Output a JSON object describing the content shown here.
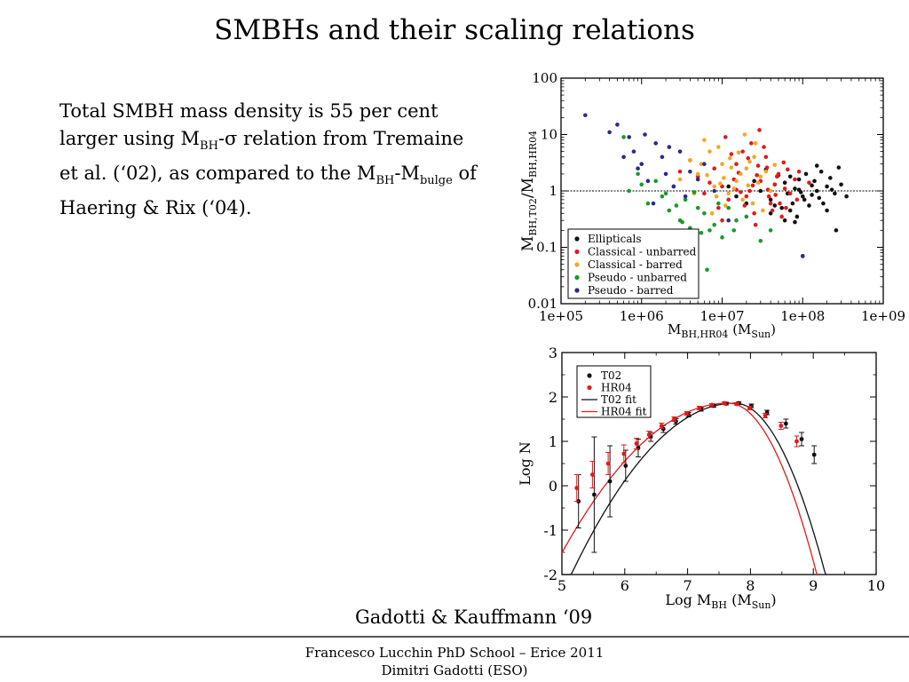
{
  "slide": {
    "title": "SMBHs and their scaling relations",
    "bullet": {
      "p1": "Total SMBH mass density is 55 per cent larger using M",
      "sub1": "BH",
      "p2": "-σ relation from Tremaine et al. (‘02), as compared to the M",
      "sub2": "BH",
      "p3": "-M",
      "sub3": "bulge",
      "p4": " of Haering & Rix (‘04)."
    },
    "credit": "Gadotti & Kauffmann ‘09",
    "footer_line1": "Francesco Lucchin PhD School – Erice 2011",
    "footer_line2": "Dimitri Gadotti (ESO)"
  },
  "colors": {
    "Ellipticals": "#111111",
    "Classical - unbarred": "#e01b1b",
    "Classical - barred": "#f5a623",
    "Pseudo - unbarred": "#1a9a2a",
    "Pseudo - barred": "#2b2a8c",
    "T02": "#111111",
    "HR04": "#e01b1b"
  },
  "chart_data": [
    {
      "type": "scatter",
      "xscale": "log",
      "yscale": "log",
      "xlim": [
        100000,
        1000000000
      ],
      "ylim": [
        0.01,
        100
      ],
      "xticks": [
        "1e+05",
        "1e+06",
        "1e+07",
        "1e+08",
        "1e+09"
      ],
      "yticks": [
        "0.01",
        "0.1",
        "1",
        "10",
        "100"
      ],
      "xlabel": {
        "main": "M",
        "sub": "BH,HR04",
        "rest": " (M",
        "unit": "Sun",
        "end": ")"
      },
      "ylabel": {
        "main1": "M",
        "sub1": "BH,T02",
        "slash": "/M",
        "sub2": "BH,HR04"
      },
      "reference_line_y": 1,
      "legend_position": "bottom-left",
      "series": [
        {
          "name": "Ellipticals",
          "points": [
            [
              80000000,
              1.1
            ],
            [
              100000000,
              0.8
            ],
            [
              60000000,
              1.4
            ],
            [
              150000000,
              1.0
            ],
            [
              40000000,
              0.7
            ],
            [
              200000000,
              1.2
            ],
            [
              120000000,
              0.55
            ],
            [
              90000000,
              1.6
            ],
            [
              30000000,
              1.0
            ],
            [
              250000000,
              0.9
            ],
            [
              70000000,
              0.45
            ],
            [
              110000000,
              2.0
            ],
            [
              180000000,
              0.6
            ],
            [
              50000000,
              1.9
            ],
            [
              300000000,
              1.3
            ],
            [
              20000000,
              0.6
            ],
            [
              140000000,
              1.5
            ],
            [
              85000000,
              0.35
            ],
            [
              65000000,
              0.9
            ],
            [
              45000000,
              1.3
            ],
            [
              35000000,
              2.4
            ],
            [
              160000000,
              0.75
            ],
            [
              220000000,
              1.7
            ],
            [
              95000000,
              0.95
            ],
            [
              130000000,
              1.25
            ],
            [
              75000000,
              0.6
            ],
            [
              55000000,
              0.5
            ],
            [
              25000000,
              1.5
            ],
            [
              170000000,
              2.2
            ],
            [
              105000000,
              0.7
            ],
            [
              350000000,
              0.8
            ],
            [
              12000000,
              1.2
            ],
            [
              60000000,
              0.3
            ],
            [
              40000000,
              0.4
            ],
            [
              15000000,
              0.8
            ],
            [
              280000000,
              2.6
            ],
            [
              200000000,
              0.45
            ],
            [
              90000000,
              1.05
            ],
            [
              70000000,
              1.8
            ],
            [
              130000000,
              0.85
            ],
            [
              260000000,
              0.2
            ],
            [
              100000000,
              0.07
            ],
            [
              45000000,
              0.55
            ],
            [
              80000000,
              0.28
            ],
            [
              150000000,
              2.8
            ],
            [
              230000000,
              1.05
            ]
          ]
        },
        {
          "name": "Classical - unbarred",
          "points": [
            [
              30000000,
              1.5
            ],
            [
              20000000,
              0.8
            ],
            [
              50000000,
              2.0
            ],
            [
              10000000,
              1.2
            ],
            [
              40000000,
              0.6
            ],
            [
              15000000,
              3.0
            ],
            [
              60000000,
              1.1
            ],
            [
              25000000,
              0.4
            ],
            [
              8000000,
              2.5
            ],
            [
              35000000,
              4.0
            ],
            [
              12000000,
              0.7
            ],
            [
              70000000,
              0.9
            ],
            [
              5000000,
              1.8
            ],
            [
              45000000,
              1.3
            ],
            [
              18000000,
              5.0
            ],
            [
              28000000,
              2.8
            ],
            [
              9000000,
              0.5
            ],
            [
              55000000,
              0.35
            ],
            [
              22000000,
              1.0
            ],
            [
              14000000,
              1.6
            ],
            [
              65000000,
              2.4
            ],
            [
              38000000,
              0.8
            ],
            [
              6000000,
              0.9
            ],
            [
              11000000,
              9.0
            ],
            [
              80000000,
              1.6
            ],
            [
              4000000,
              3.5
            ],
            [
              26000000,
              0.25
            ],
            [
              33000000,
              6.0
            ],
            [
              19000000,
              0.55
            ],
            [
              48000000,
              1.8
            ],
            [
              16000000,
              2.1
            ],
            [
              7000000,
              1.4
            ],
            [
              42000000,
              0.45
            ],
            [
              58000000,
              3.2
            ],
            [
              24000000,
              1.25
            ],
            [
              13000000,
              4.5
            ],
            [
              85000000,
              0.7
            ],
            [
              17000000,
              0.95
            ],
            [
              29000000,
              12.0
            ],
            [
              52000000,
              0.6
            ],
            [
              21000000,
              3.8
            ],
            [
              37000000,
              1.05
            ],
            [
              90000000,
              2.2
            ],
            [
              3000000,
              2.2
            ],
            [
              10000000,
              0.3
            ],
            [
              46000000,
              0.85
            ],
            [
              27000000,
              1.9
            ],
            [
              62000000,
              0.5
            ],
            [
              23000000,
              7.0
            ],
            [
              120000000,
              1.4
            ],
            [
              15000000,
              1.05
            ],
            [
              36000000,
              2.6
            ]
          ]
        },
        {
          "name": "Classical - barred",
          "points": [
            [
              10000000,
              3.0
            ],
            [
              15000000,
              1.5
            ],
            [
              7000000,
              5.0
            ],
            [
              20000000,
              2.5
            ],
            [
              12000000,
              0.9
            ],
            [
              5000000,
              2.0
            ],
            [
              25000000,
              4.0
            ],
            [
              8000000,
              1.2
            ],
            [
              30000000,
              1.8
            ],
            [
              6000000,
              8.0
            ],
            [
              18000000,
              0.7
            ],
            [
              4000000,
              3.5
            ],
            [
              35000000,
              2.2
            ],
            [
              9000000,
              6.0
            ],
            [
              14000000,
              1.1
            ],
            [
              22000000,
              3.3
            ],
            [
              11000000,
              0.55
            ],
            [
              3000000,
              1.6
            ],
            [
              28000000,
              1.4
            ],
            [
              16000000,
              4.8
            ],
            [
              13000000,
              2.6
            ],
            [
              40000000,
              1.0
            ],
            [
              8500000,
              0.8
            ],
            [
              19000000,
              10.0
            ],
            [
              6500000,
              1.9
            ],
            [
              24000000,
              0.6
            ],
            [
              10500000,
              1.7
            ],
            [
              5500000,
              3.0
            ],
            [
              32000000,
              0.45
            ],
            [
              17000000,
              2.0
            ],
            [
              7500000,
              0.4
            ],
            [
              26000000,
              7.0
            ],
            [
              12500000,
              3.8
            ],
            [
              9500000,
              1.35
            ],
            [
              21000000,
              1.25
            ],
            [
              4500000,
              0.9
            ],
            [
              45000000,
              2.9
            ]
          ]
        },
        {
          "name": "Pseudo - unbarred",
          "points": [
            [
              600000,
              9.0
            ],
            [
              1500000,
              1.5
            ],
            [
              3000000,
              0.3
            ],
            [
              5000000,
              0.5
            ],
            [
              2000000,
              0.9
            ],
            [
              8000000,
              0.25
            ],
            [
              700000,
              1.0
            ],
            [
              1200000,
              0.6
            ],
            [
              4000000,
              0.22
            ],
            [
              10000000,
              0.15
            ],
            [
              2500000,
              1.2
            ],
            [
              6000000,
              0.4
            ],
            [
              3500000,
              0.7
            ],
            [
              15000000,
              0.3
            ],
            [
              900000,
              2.0
            ],
            [
              1800000,
              0.8
            ],
            [
              7000000,
              0.2
            ],
            [
              12000000,
              0.5
            ],
            [
              5500000,
              0.18
            ],
            [
              2200000,
              0.45
            ],
            [
              20000000,
              0.35
            ],
            [
              4500000,
              0.95
            ],
            [
              9000000,
              0.6
            ],
            [
              3200000,
              0.28
            ],
            [
              1000000,
              1.3
            ],
            [
              6500000,
              0.04
            ],
            [
              30000000,
              0.13
            ],
            [
              14000000,
              0.2
            ],
            [
              2700000,
              0.55
            ],
            [
              40000000,
              0.2
            ]
          ]
        },
        {
          "name": "Pseudo - barred",
          "points": [
            [
              200000,
              22.0
            ],
            [
              500000,
              15.0
            ],
            [
              400000,
              11.0
            ],
            [
              800000,
              5.0
            ],
            [
              1000000,
              3.0
            ],
            [
              1500000,
              7.0
            ],
            [
              2000000,
              2.0
            ],
            [
              600000,
              4.0
            ],
            [
              3000000,
              5.0
            ],
            [
              1200000,
              1.5
            ],
            [
              700000,
              9.0
            ],
            [
              2500000,
              1.2
            ],
            [
              900000,
              2.5
            ],
            [
              1800000,
              4.0
            ],
            [
              4000000,
              2.2
            ],
            [
              1100000,
              10.0
            ],
            [
              3500000,
              0.8
            ],
            [
              5000000,
              1.6
            ],
            [
              1400000,
              0.6
            ],
            [
              6000000,
              3.0
            ],
            [
              2200000,
              6.0
            ],
            [
              8000000,
              1.0
            ],
            [
              12000000,
              0.3
            ],
            [
              100000000,
              0.07
            ]
          ]
        }
      ]
    },
    {
      "type": "line",
      "xlim": [
        5,
        10
      ],
      "ylim": [
        -2,
        3
      ],
      "xticks": [
        "5",
        "6",
        "7",
        "8",
        "9",
        "10"
      ],
      "yticks": [
        "-2",
        "-1",
        "0",
        "1",
        "2",
        "3"
      ],
      "xlabel": {
        "main": "Log M",
        "sub": "BH",
        "rest": " (M",
        "unit": "Sun",
        "end": ")"
      },
      "ylabel": "Log N",
      "legend_position": "top-left",
      "series": [
        {
          "name": "T02",
          "kind": "points",
          "points": [
            [
              5.25,
              -0.35,
              0.6
            ],
            [
              5.5,
              -0.2,
              1.3
            ],
            [
              5.75,
              0.1,
              0.8
            ],
            [
              6.0,
              0.45,
              0.35
            ],
            [
              6.2,
              0.85,
              0.2
            ],
            [
              6.4,
              1.1,
              0.1
            ],
            [
              6.6,
              1.28,
              0.08
            ],
            [
              6.8,
              1.45,
              0.06
            ],
            [
              7.0,
              1.6,
              0.05
            ],
            [
              7.2,
              1.72,
              0.04
            ],
            [
              7.4,
              1.8,
              0.03
            ],
            [
              7.6,
              1.85,
              0.03
            ],
            [
              7.8,
              1.86,
              0.03
            ],
            [
              8.0,
              1.8,
              0.04
            ],
            [
              8.25,
              1.65,
              0.05
            ],
            [
              8.55,
              1.4,
              0.1
            ],
            [
              8.8,
              1.05,
              0.15
            ],
            [
              9.0,
              0.7,
              0.2
            ]
          ]
        },
        {
          "name": "HR04",
          "kind": "points",
          "points": [
            [
              5.25,
              -0.05,
              0.3
            ],
            [
              5.5,
              0.25,
              0.3
            ],
            [
              5.75,
              0.5,
              0.25
            ],
            [
              6.0,
              0.72,
              0.2
            ],
            [
              6.2,
              0.95,
              0.12
            ],
            [
              6.4,
              1.15,
              0.08
            ],
            [
              6.6,
              1.35,
              0.06
            ],
            [
              6.8,
              1.5,
              0.05
            ],
            [
              7.0,
              1.63,
              0.04
            ],
            [
              7.2,
              1.75,
              0.04
            ],
            [
              7.4,
              1.82,
              0.03
            ],
            [
              7.6,
              1.86,
              0.03
            ],
            [
              7.8,
              1.84,
              0.03
            ],
            [
              8.0,
              1.75,
              0.04
            ],
            [
              8.25,
              1.58,
              0.05
            ],
            [
              8.5,
              1.35,
              0.08
            ],
            [
              8.75,
              1.0,
              0.12
            ]
          ]
        },
        {
          "name": "T02 fit",
          "kind": "fit",
          "peak_x": 7.75,
          "peak_y": 1.86,
          "left_k": 0.57,
          "right_k": 1.85
        },
        {
          "name": "HR04 fit",
          "kind": "fit",
          "peak_x": 7.65,
          "peak_y": 1.86,
          "left_k": 0.48,
          "right_k": 1.95
        }
      ]
    }
  ]
}
